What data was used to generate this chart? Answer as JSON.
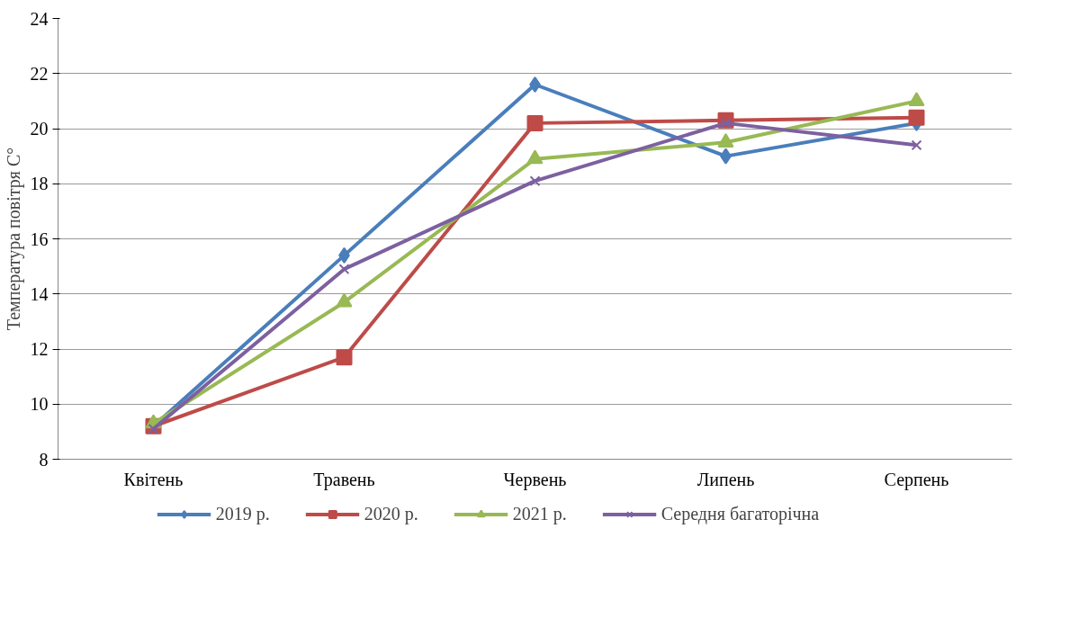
{
  "chart_data": {
    "type": "line",
    "ylabel": "Температура повітря С°",
    "categories": [
      "Квітень",
      "Травень",
      "Червень",
      "Липень",
      "Серпень"
    ],
    "ylim": [
      8,
      24
    ],
    "yticks": [
      8,
      10,
      12,
      14,
      16,
      18,
      20,
      22,
      24
    ],
    "grid": "y",
    "legend": "bottom",
    "series": [
      {
        "name": "2019 р.",
        "color": "#4a7ebb",
        "marker": "diamond",
        "values": [
          9.2,
          15.4,
          21.6,
          19.0,
          20.2
        ]
      },
      {
        "name": "2020 р.",
        "color": "#be4b48",
        "marker": "square",
        "values": [
          9.2,
          11.7,
          20.2,
          20.3,
          20.4
        ]
      },
      {
        "name": "2021 р.",
        "color": "#98b954",
        "marker": "triangle",
        "values": [
          9.3,
          13.7,
          18.9,
          19.5,
          21.0
        ]
      },
      {
        "name": "Середня багаторічна",
        "color": "#7d60a0",
        "marker": "cross",
        "values": [
          9.1,
          14.9,
          18.1,
          20.2,
          19.4
        ]
      }
    ]
  }
}
